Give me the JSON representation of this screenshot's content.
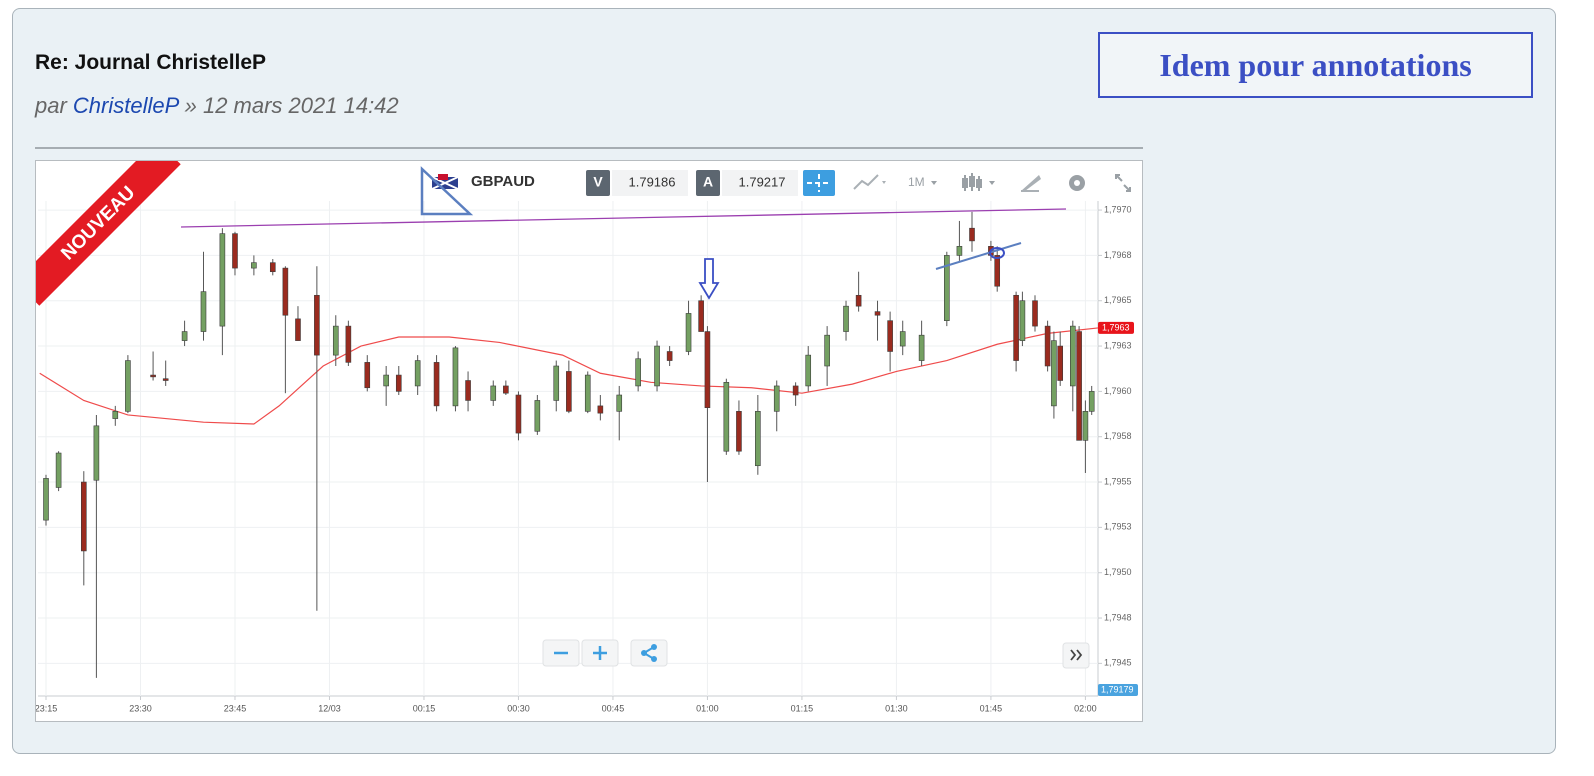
{
  "post": {
    "title": "Re: Journal ChristelleP",
    "by": "par",
    "author": "ChristelleP",
    "date": "» 12 mars 2021 14:42"
  },
  "note": "Idem pour annotations",
  "widget": {
    "badge": "NOUVEAU",
    "symbol": "GBPAUD",
    "sell_label": "V",
    "sell_price": "1.79186",
    "buy_label": "A",
    "buy_price": "1.79217",
    "timeframe": "1M",
    "cursor_price": "1,79179"
  },
  "chart_data": {
    "type": "candlestick",
    "x": [
      0,
      2,
      6,
      8,
      11,
      13,
      17,
      19,
      22,
      25,
      28,
      30,
      33,
      36,
      38,
      40,
      43,
      46,
      48,
      51,
      54,
      56,
      59,
      62,
      65,
      67,
      71,
      73,
      75,
      78,
      81,
      83,
      86,
      88,
      91,
      94,
      97,
      99,
      102,
      104,
      105,
      108,
      110,
      113,
      116,
      119,
      121,
      124,
      127,
      129,
      132,
      134,
      136,
      139,
      143,
      145,
      147,
      150,
      151,
      154,
      155,
      157,
      159,
      160,
      161,
      163,
      164,
      165,
      166
    ],
    "open": [
      1.79529,
      1.79547,
      1.7955,
      1.79551,
      1.79585,
      1.79589,
      1.79609,
      1.79607,
      1.79628,
      1.79633,
      1.79636,
      1.79687,
      1.79668,
      1.79671,
      1.79668,
      1.7964,
      1.79653,
      1.7962,
      1.79636,
      1.79616,
      1.79603,
      1.79609,
      1.79603,
      1.79616,
      1.79592,
      1.79606,
      1.79595,
      1.79603,
      1.79598,
      1.79578,
      1.79595,
      1.79611,
      1.79589,
      1.79592,
      1.79589,
      1.79603,
      1.79603,
      1.79622,
      1.79622,
      1.7965,
      1.79633,
      1.79567,
      1.79589,
      1.79559,
      1.79589,
      1.79603,
      1.79603,
      1.79614,
      1.79633,
      1.79653,
      1.79644,
      1.79639,
      1.79625,
      1.79617,
      1.79639,
      1.79675,
      1.7969,
      1.7968,
      1.79675,
      1.79653,
      1.79628,
      1.7965,
      1.79636,
      1.79592,
      1.79625,
      1.79603,
      1.79633,
      1.79573,
      1.79589
    ],
    "high": [
      1.79554,
      1.79567,
      1.79556,
      1.79587,
      1.79592,
      1.7962,
      1.79622,
      1.79617,
      1.79639,
      1.79677,
      1.7969,
      1.79688,
      1.79675,
      1.79673,
      1.79669,
      1.79647,
      1.79669,
      1.79642,
      1.79639,
      1.7962,
      1.79614,
      1.79614,
      1.7962,
      1.7962,
      1.79625,
      1.79611,
      1.79606,
      1.79606,
      1.796,
      1.79598,
      1.79617,
      1.79617,
      1.79611,
      1.79598,
      1.79603,
      1.79622,
      1.79628,
      1.79625,
      1.7965,
      1.79653,
      1.79636,
      1.79607,
      1.79595,
      1.79598,
      1.79606,
      1.79605,
      1.79625,
      1.79636,
      1.7965,
      1.79666,
      1.7965,
      1.79644,
      1.79639,
      1.79639,
      1.79677,
      1.79694,
      1.79699,
      1.79683,
      1.7968,
      1.79655,
      1.79655,
      1.79653,
      1.79639,
      1.79633,
      1.79633,
      1.79639,
      1.79636,
      1.79595,
      1.79603
    ],
    "low": [
      1.79526,
      1.79545,
      1.79493,
      1.79442,
      1.79581,
      1.79588,
      1.79606,
      1.79603,
      1.79625,
      1.79628,
      1.7962,
      1.79664,
      1.79664,
      1.79664,
      1.79599,
      1.79628,
      1.79479,
      1.79614,
      1.79614,
      1.796,
      1.79592,
      1.79598,
      1.79598,
      1.79589,
      1.79589,
      1.79589,
      1.79592,
      1.79598,
      1.79573,
      1.79576,
      1.79589,
      1.79588,
      1.79588,
      1.79584,
      1.79573,
      1.796,
      1.796,
      1.79614,
      1.7962,
      1.79633,
      1.7955,
      1.79565,
      1.79565,
      1.79554,
      1.79578,
      1.79592,
      1.796,
      1.79603,
      1.79628,
      1.79644,
      1.79628,
      1.79611,
      1.7962,
      1.79614,
      1.79636,
      1.79672,
      1.79677,
      1.79672,
      1.79655,
      1.79611,
      1.79625,
      1.79633,
      1.79611,
      1.79585,
      1.79603,
      1.79589,
      1.79573,
      1.79555,
      1.79587
    ],
    "close": [
      1.79552,
      1.79566,
      1.79512,
      1.79581,
      1.79589,
      1.79617,
      1.79608,
      1.79606,
      1.79633,
      1.79655,
      1.79687,
      1.79668,
      1.79671,
      1.79666,
      1.79642,
      1.79628,
      1.7962,
      1.79636,
      1.79616,
      1.79602,
      1.79609,
      1.796,
      1.79617,
      1.79592,
      1.79624,
      1.79595,
      1.79603,
      1.79599,
      1.79577,
      1.79595,
      1.79614,
      1.79589,
      1.79609,
      1.79588,
      1.79598,
      1.79618,
      1.79625,
      1.79617,
      1.79643,
      1.79633,
      1.79591,
      1.79605,
      1.79567,
      1.79589,
      1.79603,
      1.79598,
      1.7962,
      1.79631,
      1.79647,
      1.79647,
      1.79642,
      1.79622,
      1.79633,
      1.79631,
      1.79675,
      1.7968,
      1.79683,
      1.79675,
      1.79658,
      1.79617,
      1.7965,
      1.79636,
      1.79614,
      1.79628,
      1.79606,
      1.79636,
      1.79573,
      1.79589,
      1.796
    ],
    "up_color": "#74a062",
    "down_color": "#9a2b1f",
    "overlays": [
      {
        "color": "#ef4b4b",
        "x": [
          -1,
          6,
          13,
          25,
          33,
          37,
          44,
          50,
          56,
          64,
          72,
          82,
          88,
          96,
          104,
          112,
          120,
          128,
          135,
          143,
          151,
          159,
          167
        ],
        "values": [
          1.7961,
          1.79595,
          1.79587,
          1.79583,
          1.79582,
          1.79592,
          1.79614,
          1.79625,
          1.7963,
          1.7963,
          1.79627,
          1.7962,
          1.7961,
          1.79605,
          1.79603,
          1.79602,
          1.79599,
          1.79604,
          1.79611,
          1.79617,
          1.79626,
          1.79632,
          1.79635
        ]
      }
    ],
    "xlim": [
      -1.27,
      167
    ],
    "ylim": [
      1.79432,
      1.79705
    ],
    "xticks": [
      {
        "value": 0,
        "label": "23:15"
      },
      {
        "value": 15,
        "label": "23:30"
      },
      {
        "value": 30,
        "label": "23:45"
      },
      {
        "value": 45,
        "label": "12/03"
      },
      {
        "value": 60,
        "label": "00:15"
      },
      {
        "value": 75,
        "label": "00:30"
      },
      {
        "value": 90,
        "label": "00:45"
      },
      {
        "value": 105,
        "label": "01:00"
      },
      {
        "value": 120,
        "label": "01:15"
      },
      {
        "value": 135,
        "label": "01:30"
      },
      {
        "value": 150,
        "label": "01:45"
      },
      {
        "value": 165,
        "label": "02:00"
      }
    ],
    "yticks": [
      {
        "value": 1.797,
        "label": "1,7970"
      },
      {
        "value": 1.79675,
        "label": "1,7968"
      },
      {
        "value": 1.7965,
        "label": "1,7965"
      },
      {
        "value": 1.79625,
        "label": "1,7963"
      },
      {
        "value": 1.796,
        "label": "1,7960"
      },
      {
        "value": 1.79575,
        "label": "1,7958"
      },
      {
        "value": 1.7955,
        "label": "1,7955"
      },
      {
        "value": 1.79525,
        "label": "1,7953"
      },
      {
        "value": 1.795,
        "label": "1,7950"
      },
      {
        "value": 1.79475,
        "label": "1,7948"
      },
      {
        "value": 1.7945,
        "label": "1,7945"
      }
    ],
    "grid": true,
    "price_tag": {
      "value": 1.79635,
      "label": "1,7963",
      "color": "#e8141b"
    }
  }
}
